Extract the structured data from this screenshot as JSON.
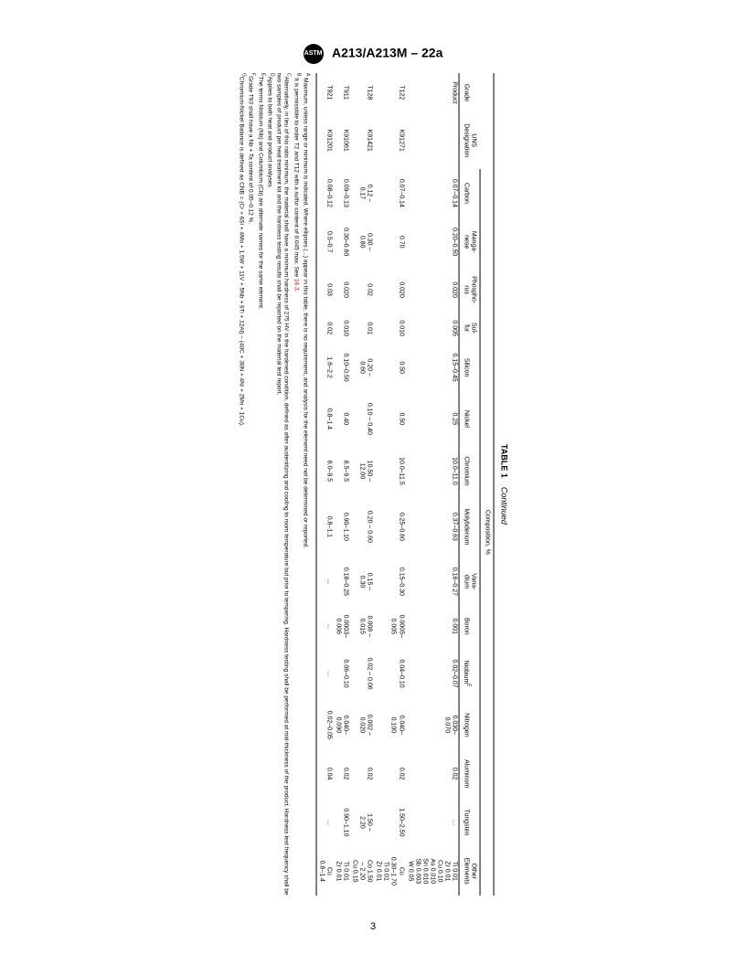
{
  "header": {
    "logo_text": "ASTM",
    "designation": "A213/A213M – 22a"
  },
  "page_number": "3",
  "table": {
    "caption_label": "TABLE 1",
    "caption_suffix": "Continued",
    "group_header": "Composition, %",
    "columns": {
      "grade": "Grade",
      "uns": "UNS\nDesignation",
      "carbon": "Carbon",
      "manganese": "Manga-\nnese",
      "phosphorus": "Phospho-\nrus",
      "sulfur": "Sul-\nfur",
      "silicon": "Silicon",
      "nickel": "Nickel",
      "chromium": "Chromium",
      "molybdenum": "Molybdenum",
      "vanadium": "Vana-\ndium",
      "boron": "Boron",
      "niobium": "Niobium",
      "nitrogen": "Nitrogen",
      "aluminum": "Aluminum",
      "tungsten": "Tungsten",
      "other": "Other\nElements"
    },
    "niobium_sup": "E",
    "rows": [
      {
        "grade": "Product",
        "uns": "",
        "carbon": "0.07–0.14",
        "manganese": "0.20–0.50",
        "phosphorus": "0.020",
        "sulfur": "0.005",
        "silicon": "0.15–0.45",
        "nickel": "0.25",
        "chromium": "10.0–11.0",
        "molybdenum": "0.37–0.63",
        "vanadium": "0.16–0.27",
        "boron": "0.001",
        "niobium": "0.02–0.07",
        "nitrogen": "0.030–\n0.070",
        "aluminum": "0.02",
        "tungsten": "…",
        "other": "Ti 0.01\nZr 0.01\nCu 0.10\nAs 0.010\nSn 0.010\nSb 0.003\nW 0.05"
      },
      {
        "grade": "T122",
        "uns": "K91271",
        "carbon": "0.07–0.14",
        "manganese": "0.70",
        "phosphorus": "0.020",
        "sulfur": "0.010",
        "silicon": "0.50",
        "nickel": "0.50",
        "chromium": "10.0–11.5",
        "molybdenum": "0.25–0.60",
        "vanadium": "0.15–0.30",
        "boron": "0.0005–\n0.005",
        "niobium": "0.04–0.10",
        "nitrogen": "0.040–\n0.100",
        "aluminum": "0.02",
        "tungsten": "1.50–2.50",
        "other": "Cu\n0.30–1.70\nTi 0.01\nZr 0.01"
      },
      {
        "grade": "T128",
        "uns": "K91421",
        "carbon": "0.12 –\n0.17",
        "manganese": "0.30 –\n0.80",
        "phosphorus": "0.02",
        "sulfur": "0.01",
        "silicon": "0.20 –\n0.60",
        "nickel": "0.10 – 0.40",
        "chromium": "10.50 –\n12.00",
        "molybdenum": "0.20 – 0.60",
        "vanadium": "0.15 –\n0.30",
        "boron": "0.008 –\n0.015",
        "niobium": "0.02 – 0.06",
        "nitrogen": "0.002 –\n0.020",
        "aluminum": "0.02",
        "tungsten": "1.50 –\n2.20",
        "other": "Co 1.50\n– 2.20\nCu 0.15"
      },
      {
        "grade": "T911",
        "uns": "K91061",
        "carbon": "0.09–0.13",
        "manganese": "0.30–0.60",
        "phosphorus": "0.020",
        "sulfur": "0.010",
        "silicon": "0.10–0.50",
        "nickel": "0.40",
        "chromium": "8.5–9.5",
        "molybdenum": "0.90–1.10",
        "vanadium": "0.18–0.25",
        "boron": "0.0003–\n0.006",
        "niobium": "0.06–0.10",
        "nitrogen": "0.040–\n0.090",
        "aluminum": "0.02",
        "tungsten": "0.90–1.10",
        "other": "Ti 0.01\nZr 0.01"
      },
      {
        "grade": "T921",
        "uns": "K91201",
        "carbon": "0.08–0.12",
        "manganese": "0.5–0.7",
        "phosphorus": "0.03",
        "sulfur": "0.02",
        "silicon": "1.6–2.2",
        "nickel": "0.8–1.4",
        "chromium": "8.0–9.5",
        "molybdenum": "0.8–1.1",
        "vanadium": "…",
        "boron": "…",
        "niobium": "…",
        "nitrogen": "0.02–0.05",
        "aluminum": "0.04",
        "tungsten": "…",
        "other": "Cu\n0.8–1.4"
      }
    ],
    "footnotes": {
      "A": "Maximum, unless range or minimum is indicated. Where ellipses (...) appear in this table, there is no requirement, and analysis for the element need not be determined or reported.",
      "B": "It is permissible to order T2 and T12 with a sulfur content of 0.045 max. See ",
      "B_ref": "16.3",
      "B_end": ".",
      "C": "Alternatively, in lieu of this ratio minimum, the material shall have a minimum hardness of 275 HV in the hardened condition, defined as after austenitizing and cooling to room temperature but prior to tempering. Hardness testing shall be performed at mid-thickness of the product. Hardness test frequency shall be two samples of product per heat treatment lot and the hardness testing results shall be reported on the material test report.",
      "D": "Applies to both heat and product analyses.",
      "E": "The terms Niobium (Nb) and Columbium (Cb) are alternate names for the same element.",
      "F": "Grade T93 shall have a Nb + Ta content of 0.05–0.12 %.",
      "G": "Chromium-Nickel Balance is defined as CNB = (Cr + 6Si + 4Mo + 1.5W + 11V + 5Nb + 9Ti + 12Al) − (40C + 30N + 4Ni + 2Mn + 1Cu)."
    }
  }
}
